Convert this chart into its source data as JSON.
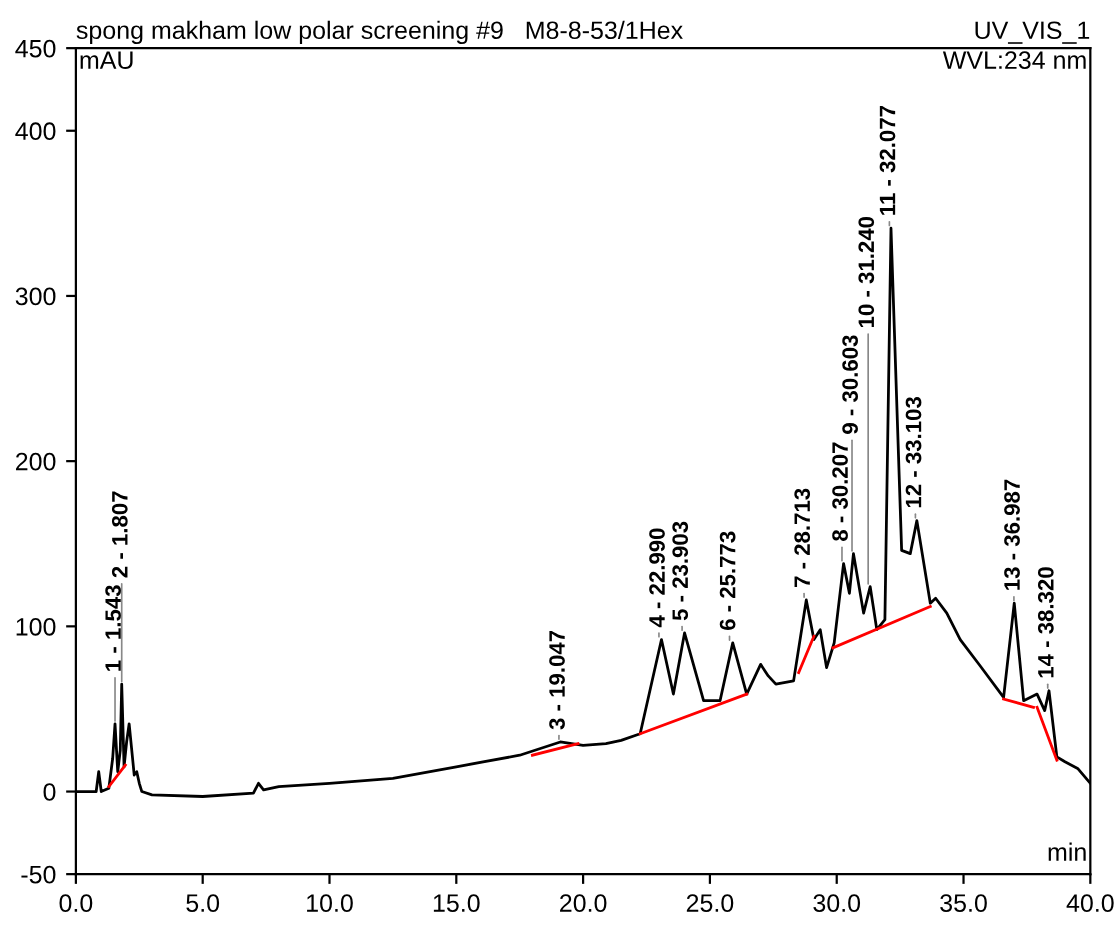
{
  "chart_data": {
    "type": "line",
    "title": "spong makham low polar screening #9   M8-8-53/1Hex",
    "subtitle": "UV_VIS_1",
    "xlabel": "min",
    "ylabel": "mAU",
    "xlim": [
      0,
      40
    ],
    "ylim": [
      -50,
      450
    ],
    "xticks": [
      {
        "value": 0,
        "label": "0.0"
      },
      {
        "value": 5,
        "label": "5.0"
      },
      {
        "value": 10,
        "label": "10.0"
      },
      {
        "value": 15,
        "label": "15.0"
      },
      {
        "value": 20,
        "label": "20.0"
      },
      {
        "value": 25,
        "label": "25.0"
      },
      {
        "value": 30,
        "label": "30.0"
      },
      {
        "value": 35,
        "label": "35.0"
      },
      {
        "value": 40,
        "label": "40.0"
      }
    ],
    "yticks": [
      -50,
      0,
      100,
      200,
      300,
      400,
      450
    ],
    "grid": false,
    "legend": false,
    "marker": "none",
    "line_style": "solid",
    "series": [
      {
        "color": "#000000",
        "x": [
          0,
          0.8,
          0.9,
          1.0,
          1.3,
          1.45,
          1.543,
          1.65,
          1.75,
          1.807,
          1.9,
          2.0,
          2.1,
          2.3,
          2.4,
          2.5,
          2.6,
          3.0,
          5.0,
          7.0,
          7.2,
          7.4,
          8.0,
          10.0,
          12.5,
          15.0,
          17.5,
          19.1,
          20.0,
          20.9,
          21.5,
          22.25,
          23.09,
          23.56,
          24.0,
          24.75,
          25.4,
          25.9,
          26.45,
          27.0,
          27.3,
          27.6,
          28.3,
          28.8,
          29.1,
          29.35,
          29.6,
          29.9,
          30.27,
          30.5,
          30.66,
          31.06,
          31.32,
          31.58,
          31.9,
          32.14,
          32.56,
          32.9,
          33.16,
          33.69,
          33.9,
          34.34,
          34.87,
          35.66,
          36.58,
          37.0,
          37.37,
          37.9,
          38.2,
          38.37,
          38.68,
          39.0,
          39.5,
          40.0
        ],
        "values": [
          0,
          0,
          12,
          0,
          2,
          20,
          41,
          12,
          25,
          65,
          15,
          30,
          41,
          10,
          12,
          5,
          0,
          -2,
          -3,
          -1,
          5,
          1,
          3,
          5,
          8,
          15,
          22,
          30,
          28,
          29,
          31,
          35,
          92,
          59,
          96,
          55,
          55,
          90,
          59,
          77,
          70,
          65,
          67,
          116,
          92,
          98,
          75,
          90,
          138,
          120,
          144,
          108,
          124,
          98,
          104,
          341,
          146,
          144,
          164,
          114,
          117,
          108,
          92,
          76,
          57,
          114,
          55,
          59,
          49,
          61,
          21,
          18,
          14,
          5
        ]
      },
      {
        "color": "#ff0000",
        "x": [
          1.3,
          1.95,
          null,
          18.0,
          19.8,
          null,
          22.25,
          26.45,
          null,
          28.5,
          29.1,
          null,
          29.85,
          33.69,
          null,
          36.58,
          37.76,
          null,
          37.9,
          38.68
        ],
        "values": [
          3,
          16,
          null,
          22,
          29,
          null,
          35,
          59,
          null,
          72,
          94,
          null,
          87,
          112,
          null,
          56,
          51,
          null,
          51,
          19
        ]
      }
    ],
    "annotations": [
      "WVL:234 nm",
      {
        "text": "1 - 1.543",
        "x": 1.543,
        "y": 41
      },
      {
        "text": "2 - 1.807",
        "x": 1.807,
        "y": 65
      },
      {
        "text": "3 - 19.047",
        "x": 19.047,
        "y": 30
      },
      {
        "text": "4 - 22.990",
        "x": 22.99,
        "y": 92
      },
      {
        "text": "5 - 23.903",
        "x": 23.903,
        "y": 96
      },
      {
        "text": "6 - 25.773",
        "x": 25.773,
        "y": 90
      },
      {
        "text": "7 - 28.713",
        "x": 28.713,
        "y": 116
      },
      {
        "text": "8 - 30.207",
        "x": 30.207,
        "y": 138
      },
      {
        "text": "9 - 30.603",
        "x": 30.603,
        "y": 144
      },
      {
        "text": "10 - 31.240",
        "x": 31.24,
        "y": 124
      },
      {
        "text": "11 - 32.077",
        "x": 32.077,
        "y": 341
      },
      {
        "text": "12 - 33.103",
        "x": 33.103,
        "y": 164
      },
      {
        "text": "13 - 36.987",
        "x": 36.987,
        "y": 114
      },
      {
        "text": "14 - 38.320",
        "x": 38.32,
        "y": 61
      }
    ]
  }
}
